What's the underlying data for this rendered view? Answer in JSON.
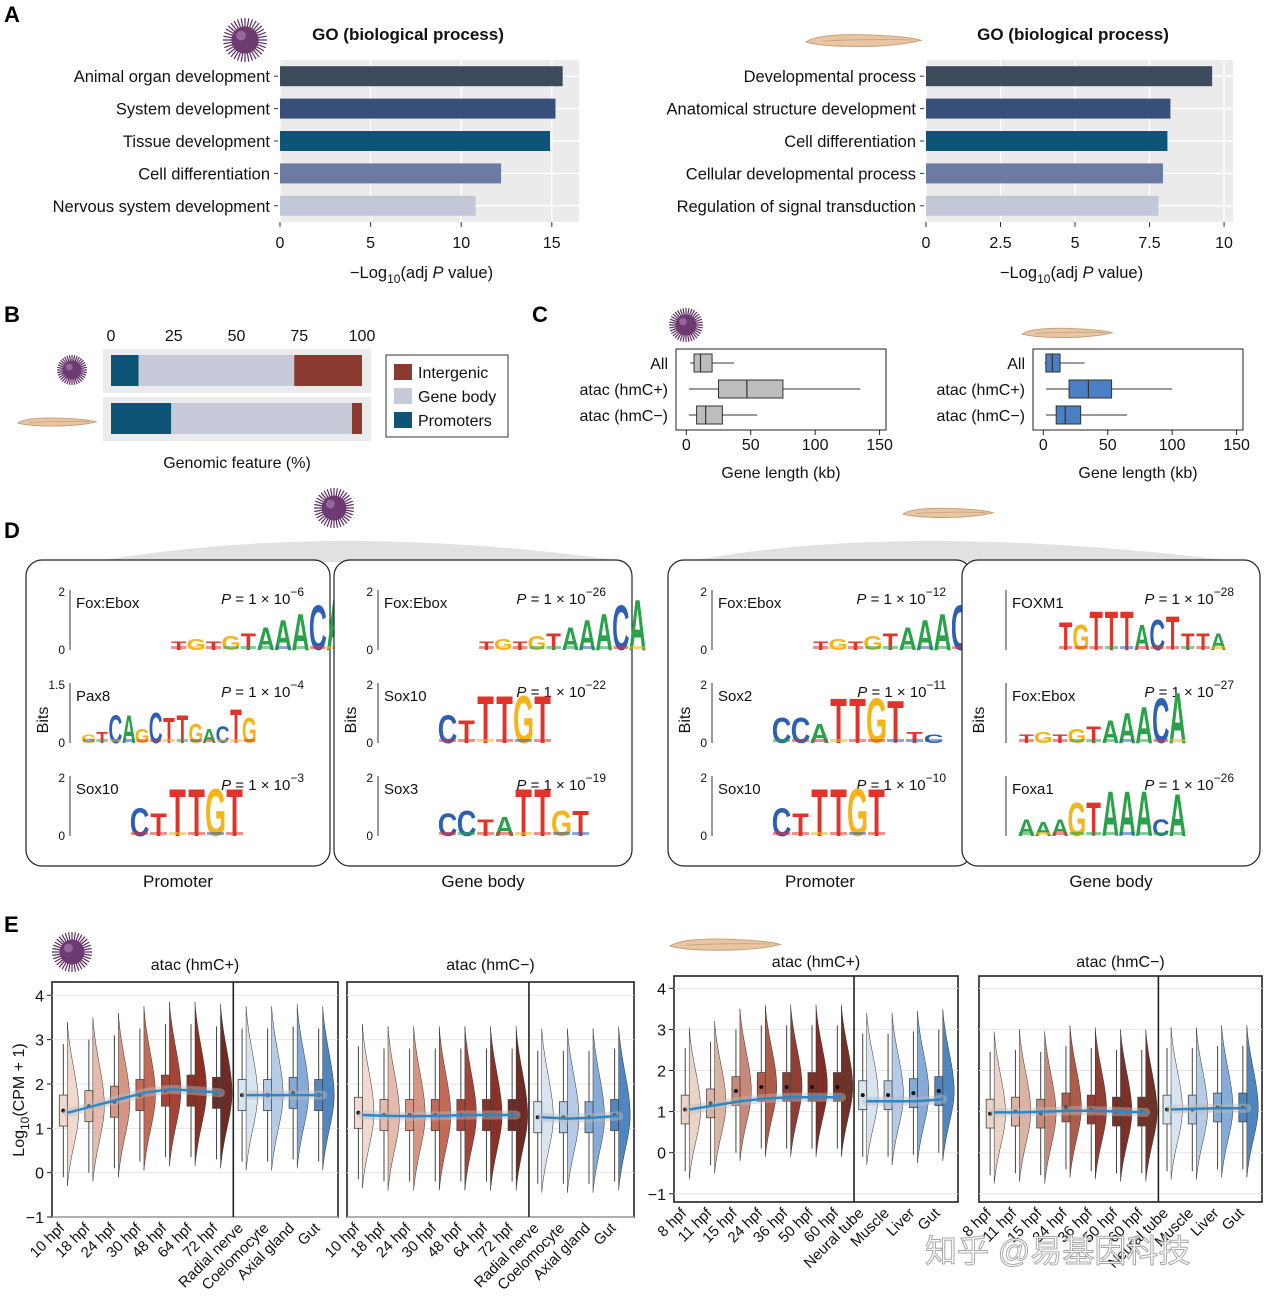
{
  "panel_labels": [
    "A",
    "B",
    "C",
    "D",
    "E"
  ],
  "colors": {
    "navy1": "#3d4a5c",
    "navy2": "#36507a",
    "teal": "#0e5477",
    "slate": "#6b7ba3",
    "pale": "#c3c8d8",
    "intergenic": "#8b3a2f",
    "gene_body": "#c7cbd9",
    "promoters": "#0e5477",
    "box_urchin": "#bdbdbd",
    "box_lamprey": "#4a7fc4",
    "trend": "#2f86c7",
    "logo_A": "#2aa14a",
    "logo_C": "#2e5fb3",
    "logo_G": "#f3b51a",
    "logo_T": "#e0342b"
  },
  "watermark": "知乎 @易基因科技",
  "chart_data": [
    {
      "id": "A-left",
      "type": "bar",
      "title": "GO (biological process)",
      "organism_icon": "sea-urchin-icon",
      "categories": [
        "Animal organ development",
        "System development",
        "Tissue development",
        "Cell differentiation",
        "Nervous system development"
      ],
      "values": [
        15.6,
        15.2,
        14.9,
        12.2,
        10.8
      ],
      "xlim": [
        0,
        16.5
      ],
      "ticks": [
        "0",
        "5",
        "10",
        "15"
      ],
      "tick_values": [
        0,
        5,
        10,
        15
      ],
      "xlabel": {
        "prefix": "−Log",
        "sub": "10",
        "mid": "(adj ",
        "italic": "P",
        "suffix": " value)"
      }
    },
    {
      "id": "A-right",
      "type": "bar",
      "title": "GO (biological process)",
      "organism_icon": "lamprey-icon",
      "categories": [
        "Developmental process",
        "Anatomical structure development",
        "Cell differentiation",
        "Cellular developmental process",
        "Regulation of signal transduction"
      ],
      "values": [
        9.6,
        8.2,
        8.1,
        7.95,
        7.8
      ],
      "xlim": [
        0,
        10.3
      ],
      "ticks": [
        "0",
        "2.5",
        "5",
        "7.5",
        "10"
      ],
      "tick_values": [
        0,
        2.5,
        5,
        7.5,
        10
      ],
      "xlabel": {
        "prefix": "−Log",
        "sub": "10",
        "mid": "(adj ",
        "italic": "P",
        "suffix": " value)"
      }
    },
    {
      "id": "B",
      "type": "bar",
      "stacked": true,
      "xlabel": "Genomic feature (%)",
      "ticks": [
        "0",
        "25",
        "50",
        "75",
        "100"
      ],
      "tick_values": [
        0,
        25,
        50,
        75,
        100
      ],
      "legend": [
        "Intergenic",
        "Gene body",
        "Promoters"
      ],
      "rows": [
        {
          "organism": "sea-urchin",
          "promoters": 11,
          "gene_body": 62,
          "intergenic": 27
        },
        {
          "organism": "lamprey",
          "promoters": 24,
          "gene_body": 72,
          "intergenic": 4
        }
      ]
    },
    {
      "id": "C-left",
      "type": "box",
      "xlabel": "Gene length (kb)",
      "ticks": [
        "0",
        "50",
        "100",
        "150"
      ],
      "tick_values": [
        0,
        50,
        100,
        150
      ],
      "xlim": [
        -8,
        155
      ],
      "categories": [
        "All",
        "atac (hmC+)",
        "atac (hmC−)"
      ],
      "boxes": [
        {
          "min": 3,
          "q1": 6,
          "median": 11,
          "q3": 20,
          "max": 37
        },
        {
          "min": 2,
          "q1": 25,
          "median": 47,
          "q3": 75,
          "max": 135
        },
        {
          "min": 2,
          "q1": 8,
          "median": 15,
          "q3": 28,
          "max": 55
        }
      ]
    },
    {
      "id": "C-right",
      "type": "box",
      "xlabel": "Gene length (kb)",
      "ticks": [
        "0",
        "50",
        "100",
        "150"
      ],
      "tick_values": [
        0,
        50,
        100,
        150
      ],
      "xlim": [
        -8,
        155
      ],
      "categories": [
        "All",
        "atac (hmC+)",
        "atac (hmC−)"
      ],
      "boxes": [
        {
          "min": 1,
          "q1": 2,
          "median": 7,
          "q3": 13,
          "max": 32
        },
        {
          "min": 2,
          "q1": 20,
          "median": 35,
          "q3": 53,
          "max": 100
        },
        {
          "min": 2,
          "q1": 10,
          "median": 17,
          "q3": 29,
          "max": 65
        }
      ]
    },
    {
      "id": "D",
      "type": "table",
      "ylabel": "Bits",
      "groups": [
        {
          "organism": "sea-urchin",
          "boxes": [
            {
              "label": "Promoter",
              "motifs": [
                {
                  "name": "Fox:Ebox",
                  "p_text": "P = 1 × 10",
                  "p_exp": "−6",
                  "ymax": "2",
                  "seq": "TGTGTAAACA",
                  "heights": [
                    0.3,
                    0.4,
                    0.3,
                    0.5,
                    0.6,
                    0.8,
                    1.1,
                    1.3,
                    1.6,
                    1.8
                  ]
                },
                {
                  "name": "Pax8",
                  "p_text": "P = 1 × 10",
                  "p_exp": "−4",
                  "ymax": "1.5",
                  "seq": "GTCAGCTTGACTG",
                  "heights": [
                    0.3,
                    0.4,
                    1.0,
                    1.0,
                    0.5,
                    1.1,
                    0.9,
                    1.0,
                    0.7,
                    0.5,
                    0.6,
                    1.2,
                    0.9
                  ]
                },
                {
                  "name": "Sox10",
                  "p_text": "P = 1 × 10",
                  "p_exp": "−3",
                  "ymax": "2",
                  "seq": "CTTTGT",
                  "heights": [
                    1.0,
                    0.8,
                    1.7,
                    1.7,
                    1.7,
                    1.7
                  ]
                }
              ]
            },
            {
              "label": "Gene body",
              "motifs": [
                {
                  "name": "Fox:Ebox",
                  "p_text": "P = 1 × 10",
                  "p_exp": "−26",
                  "ymax": "2",
                  "seq": "TGTGTAAACA",
                  "heights": [
                    0.3,
                    0.4,
                    0.3,
                    0.5,
                    0.6,
                    0.8,
                    1.1,
                    1.3,
                    1.6,
                    1.8
                  ]
                },
                {
                  "name": "Sox10",
                  "p_text": "P = 1 × 10",
                  "p_exp": "−22",
                  "ymax": "2",
                  "seq": "CTTTGT",
                  "heights": [
                    1.0,
                    0.8,
                    1.7,
                    1.7,
                    1.7,
                    1.7
                  ]
                },
                {
                  "name": "Sox3",
                  "p_text": "P = 1 × 10",
                  "p_exp": "−19",
                  "ymax": "2",
                  "seq": "CCTATTGT",
                  "heights": [
                    0.8,
                    0.9,
                    0.6,
                    0.7,
                    1.7,
                    1.7,
                    0.9,
                    0.9
                  ]
                }
              ]
            }
          ]
        },
        {
          "organism": "lamprey",
          "boxes": [
            {
              "label": "Promoter",
              "motifs": [
                {
                  "name": "Fox:Ebox",
                  "p_text": "P = 1 × 10",
                  "p_exp": "−12",
                  "ymax": "2",
                  "seq": "TGTGTAAACA",
                  "heights": [
                    0.3,
                    0.4,
                    0.3,
                    0.5,
                    0.6,
                    0.8,
                    1.1,
                    1.3,
                    1.6,
                    1.8
                  ]
                },
                {
                  "name": "Sox2",
                  "p_text": "P = 1 × 10",
                  "p_exp": "−11",
                  "ymax": "2",
                  "seq": "CCATTGTTC",
                  "heights": [
                    0.9,
                    0.9,
                    0.7,
                    1.6,
                    1.6,
                    1.6,
                    1.5,
                    0.4,
                    0.3
                  ]
                },
                {
                  "name": "Sox10",
                  "p_text": "P = 1 × 10",
                  "p_exp": "−10",
                  "ymax": "2",
                  "seq": "CTTTGT",
                  "heights": [
                    1.0,
                    0.8,
                    1.7,
                    1.7,
                    1.7,
                    1.7
                  ]
                }
              ]
            },
            {
              "label": "Gene body",
              "motifs": [
                {
                  "name": "FOXM1",
                  "p_text": "P = 1 × 10",
                  "p_exp": "−28",
                  "ymax": "",
                  "seq": "TGTTTACTTTA",
                  "heights": [
                    1.0,
                    0.9,
                    1.4,
                    1.4,
                    1.4,
                    0.9,
                    1.1,
                    1.2,
                    0.6,
                    0.6,
                    0.6
                  ]
                },
                {
                  "name": "Fox:Ebox",
                  "p_text": "P = 1 × 10",
                  "p_exp": "−27",
                  "ymax": "",
                  "seq": "TGTGTAAACA",
                  "heights": [
                    0.3,
                    0.4,
                    0.3,
                    0.5,
                    0.6,
                    0.8,
                    1.1,
                    1.3,
                    1.6,
                    1.8
                  ]
                },
                {
                  "name": "Foxa1",
                  "p_text": "P = 1 × 10",
                  "p_exp": "−26",
                  "ymax": "",
                  "seq": "AAAGTAAACA",
                  "heights": [
                    0.6,
                    0.5,
                    0.6,
                    1.2,
                    1.2,
                    1.6,
                    1.6,
                    1.6,
                    0.6,
                    1.5
                  ]
                }
              ]
            }
          ]
        }
      ]
    },
    {
      "id": "E",
      "type": "area",
      "ylabel_prefix": "Log",
      "ylabel_sub": "10",
      "ylabel_suffix": "(CPM + 1)",
      "panels": [
        {
          "title": "atac (hmC+)",
          "organism": "sea-urchin",
          "ylim": [
            -1,
            4.3
          ],
          "yticks": [
            "−1",
            "0",
            "1",
            "2",
            "3",
            "4"
          ],
          "ytick_values": [
            -1,
            0,
            1,
            2,
            3,
            4
          ],
          "dev_labels": [
            "10 hpf",
            "18 hpf",
            "24 hpf",
            "30 hpf",
            "48 hpf",
            "64 hpf",
            "72 hpf"
          ],
          "tissue_labels": [
            "Radial nerve",
            "Coelomocyte",
            "Axial gland",
            "Gut"
          ],
          "dev_medians": [
            1.4,
            1.5,
            1.6,
            1.75,
            1.85,
            1.85,
            1.8
          ],
          "tissue_medians": [
            1.75,
            1.75,
            1.8,
            1.75
          ],
          "dev_trend": [
            1.35,
            1.5,
            1.65,
            1.8,
            1.88,
            1.85,
            1.8
          ],
          "tissue_trend": [
            1.75,
            1.75,
            1.75,
            1.75
          ]
        },
        {
          "title": "atac (hmC−)",
          "organism": "sea-urchin",
          "ylim": [
            -1,
            4.3
          ],
          "yticks": [],
          "ytick_values": [],
          "dev_labels": [
            "10 hpf",
            "18 hpf",
            "24 hpf",
            "30 hpf",
            "48 hpf",
            "64 hpf",
            "72 hpf"
          ],
          "tissue_labels": [
            "Radial nerve",
            "Coelomocyte",
            "Axial gland",
            "Gut"
          ],
          "dev_medians": [
            1.35,
            1.3,
            1.3,
            1.3,
            1.3,
            1.3,
            1.3
          ],
          "tissue_medians": [
            1.25,
            1.25,
            1.25,
            1.3
          ],
          "dev_trend": [
            1.3,
            1.28,
            1.27,
            1.28,
            1.3,
            1.3,
            1.3
          ],
          "tissue_trend": [
            1.25,
            1.22,
            1.24,
            1.28
          ]
        },
        {
          "title": "atac (hmC+)",
          "organism": "lamprey",
          "ylim": [
            -1.2,
            4.3
          ],
          "yticks": [
            "−1",
            "0",
            "1",
            "2",
            "3",
            "4"
          ],
          "ytick_values": [
            -1,
            0,
            1,
            2,
            3,
            4
          ],
          "dev_labels": [
            "8 hpf",
            "11 hpf",
            "15 hpf",
            "24 hpf",
            "36 hpf",
            "50 hpf",
            "60 hpf"
          ],
          "tissue_labels": [
            "Neural tube",
            "Muscle",
            "Liver",
            "Gut"
          ],
          "dev_medians": [
            1.05,
            1.2,
            1.5,
            1.6,
            1.6,
            1.6,
            1.6
          ],
          "tissue_medians": [
            1.4,
            1.4,
            1.45,
            1.5
          ],
          "dev_trend": [
            1.05,
            1.15,
            1.25,
            1.32,
            1.35,
            1.35,
            1.35
          ],
          "tissue_trend": [
            1.25,
            1.25,
            1.25,
            1.3
          ]
        },
        {
          "title": "atac (hmC−)",
          "organism": "lamprey",
          "ylim": [
            -1.2,
            4.3
          ],
          "yticks": [],
          "ytick_values": [],
          "dev_labels": [
            "8 hpf",
            "11 hpf",
            "15 hpf",
            "24 hpf",
            "36 hpf",
            "50 hpf",
            "60 hpf"
          ],
          "tissue_labels": [
            "Neural tube",
            "Muscle",
            "Liver",
            "Gut"
          ],
          "dev_medians": [
            0.95,
            1.0,
            0.95,
            1.1,
            1.05,
            1.0,
            1.0
          ],
          "tissue_medians": [
            1.05,
            1.05,
            1.1,
            1.1
          ],
          "dev_trend": [
            0.98,
            0.98,
            1.0,
            1.02,
            1.02,
            1.0,
            0.98
          ],
          "tissue_trend": [
            1.05,
            1.07,
            1.08,
            1.08
          ]
        }
      ]
    }
  ]
}
